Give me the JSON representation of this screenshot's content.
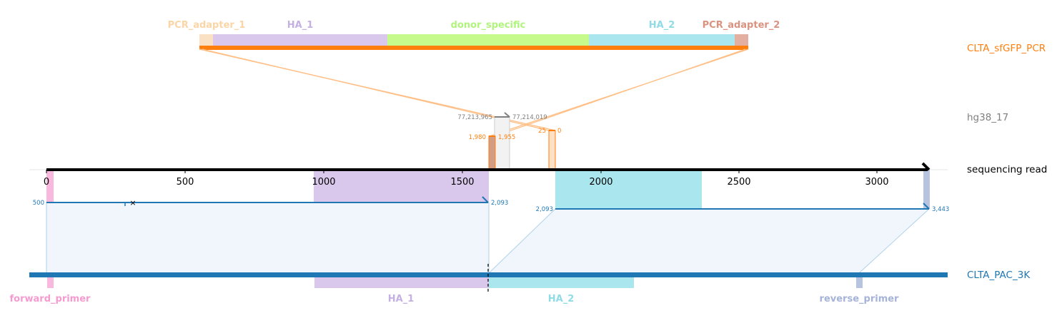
{
  "reads": {
    "top": {
      "label": "CLTA_sfGFP_PCR",
      "color": "#ff7f0e"
    },
    "genome": {
      "label": "hg38_17",
      "color": "#808080"
    },
    "sequencing": {
      "label": "sequencing read",
      "color": "#000000"
    },
    "bottom": {
      "label": "CLTA_PAC_3K",
      "color": "#1f77b4"
    }
  },
  "top_features": [
    {
      "label": "PCR_adapter_1",
      "color": "#fbd5a5"
    },
    {
      "label": "HA_1",
      "color": "#c5b0e3"
    },
    {
      "label": "donor_specific",
      "color": "#b0f57b"
    },
    {
      "label": "HA_2",
      "color": "#8fdbe6"
    },
    {
      "label": "PCR_adapter_2",
      "color": "#d99380"
    }
  ],
  "bottom_features": [
    {
      "label": "forward_primer",
      "color": "#f59bd0"
    },
    {
      "label": "HA_1",
      "color": "#c5b0e3"
    },
    {
      "label": "HA_2",
      "color": "#8fdbe6"
    },
    {
      "label": "reverse_primer",
      "color": "#a6b3d9"
    }
  ],
  "axis_ticks": [
    "0",
    "500",
    "1000",
    "1500",
    "2000",
    "2500",
    "3000"
  ],
  "alignment_labels": {
    "genome_start": "77,213,965",
    "genome_end": "77,214,019",
    "top_a_start": "1,980",
    "top_a_end": "1,955",
    "top_b_start": "25",
    "top_b_end": "0",
    "bottom_a_start": "500",
    "bottom_a_end": "2,093",
    "bottom_b_start": "2,093",
    "bottom_b_end": "3,443"
  },
  "mismatch_marker": "×"
}
